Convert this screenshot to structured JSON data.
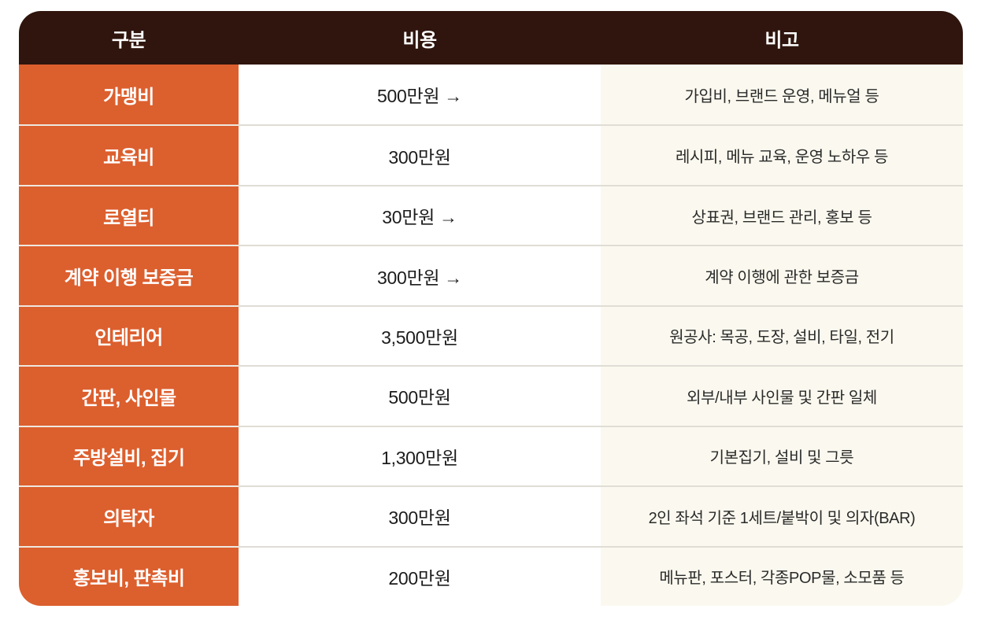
{
  "chart_data": {
    "type": "table",
    "title": "",
    "columns": [
      "구분",
      "비용",
      "비고"
    ],
    "rows": [
      [
        "가맹비",
        "500만원 →",
        "가입비, 브랜드 운영, 메뉴얼 등"
      ],
      [
        "교육비",
        "300만원",
        "레시피, 메뉴 교육, 운영 노하우 등"
      ],
      [
        "로열티",
        "30만원 →",
        "상표권, 브랜드 관리, 홍보 등"
      ],
      [
        "계약 이행 보증금",
        "300만원 →",
        "계약 이행에 관한 보증금"
      ],
      [
        "인테리어",
        "3,500만원",
        "원공사: 목공, 도장, 설비, 타일, 전기"
      ],
      [
        "간판, 사인물",
        "500만원",
        "외부/내부 사인물 및 간판 일체"
      ],
      [
        "주방설비, 집기",
        "1,300만원",
        "기본집기, 설비 및 그릇"
      ],
      [
        "의탁자",
        "300만원",
        "2인 좌석 기준 1세트/붙박이 및 의자(BAR)"
      ],
      [
        "홍보비, 판촉비",
        "200만원",
        "메뉴판, 포스터, 각종POP물, 소모품 등"
      ]
    ]
  },
  "colors": {
    "header_bg": "#2F150D",
    "header_text": "#FFFFFF",
    "category_bg": "#DC5F2E",
    "category_text": "#FFFFFF",
    "cost_bg": "#FFFFFF",
    "cost_text": "#1C1C1C",
    "note_bg": "#FBF9EF",
    "note_text": "#2A2A2A",
    "divider": "#E0DDD6",
    "page_bg": "#FFFFFF"
  }
}
